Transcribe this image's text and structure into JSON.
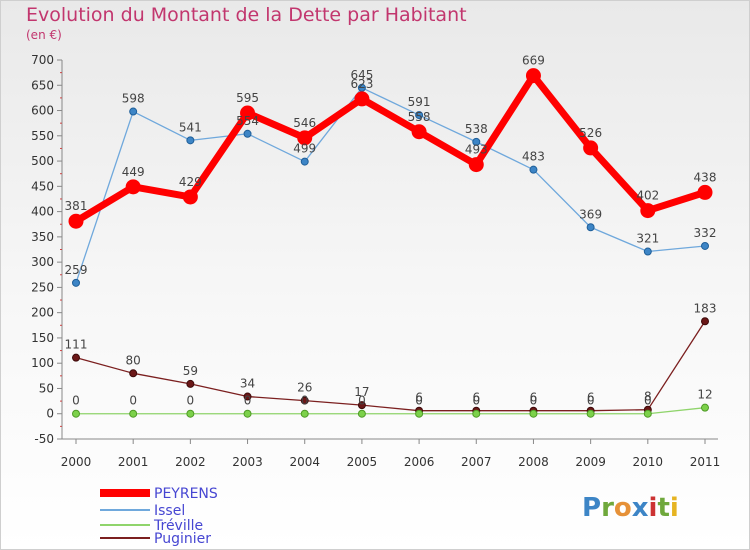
{
  "header": {
    "title": "Evolution du Montant de la Dette par Habitant",
    "unit": "(en €)"
  },
  "logo": {
    "text": "Proxiti"
  },
  "chart_data": {
    "type": "line",
    "title": "Evolution du Montant de la Dette par Habitant",
    "subtitle": "(en €)",
    "x": [
      "2000",
      "2001",
      "2002",
      "2003",
      "2004",
      "2005",
      "2006",
      "2007",
      "2008",
      "2009",
      "2010",
      "2011"
    ],
    "ylim": [
      -50,
      700
    ],
    "yticks": [
      -50,
      0,
      50,
      100,
      150,
      200,
      250,
      300,
      350,
      400,
      450,
      500,
      550,
      600,
      650,
      700
    ],
    "grid": false,
    "legend_position": "bottom-left",
    "series": [
      {
        "name": "PEYRENS",
        "color": "#ff0000",
        "values": [
          381,
          449,
          429,
          595,
          546,
          623,
          558,
          493,
          669,
          526,
          402,
          438
        ]
      },
      {
        "name": "Issel",
        "color": "#6fa8dc",
        "values": [
          259,
          598,
          541,
          554,
          499,
          645,
          591,
          538,
          483,
          369,
          321,
          332
        ]
      },
      {
        "name": "Tréville",
        "color": "#8fd46b",
        "values": [
          0,
          0,
          0,
          0,
          0,
          0,
          0,
          0,
          0,
          0,
          0,
          12
        ]
      },
      {
        "name": "Puginier",
        "color": "#7b1f1f",
        "values": [
          111,
          80,
          59,
          34,
          26,
          17,
          6,
          6,
          6,
          6,
          8,
          183
        ]
      }
    ]
  }
}
